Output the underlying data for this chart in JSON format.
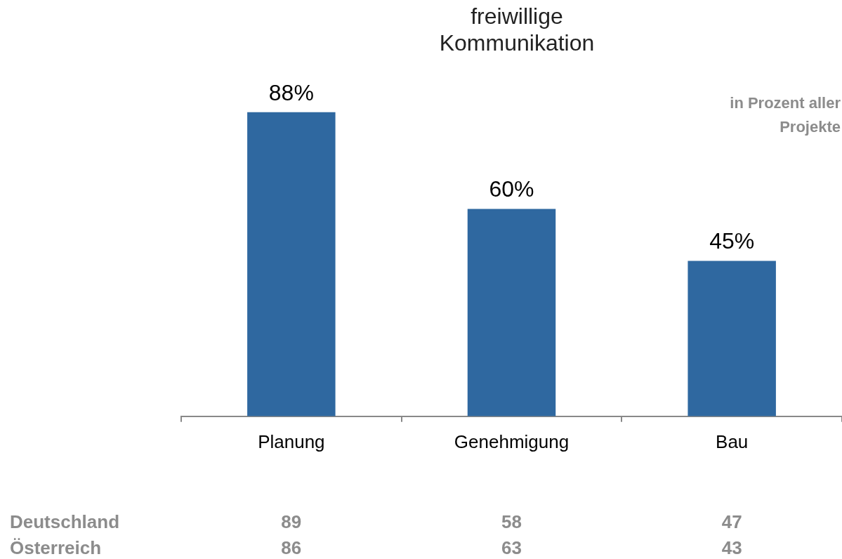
{
  "chart_data": {
    "type": "bar",
    "title": "freiwillige\nKommunikation",
    "subtitle": "in Prozent aller\nProjekte",
    "categories": [
      "Planung",
      "Genehmigung",
      "Bau"
    ],
    "values": [
      88,
      60,
      45
    ],
    "value_labels": [
      "88%",
      "60%",
      "45%"
    ],
    "color": "#2f68a0",
    "grid": false,
    "legend": false,
    "annotations": [
      "Deutschland",
      "89",
      "58",
      "47",
      "Österreich",
      "86",
      "63",
      "43"
    ]
  }
}
